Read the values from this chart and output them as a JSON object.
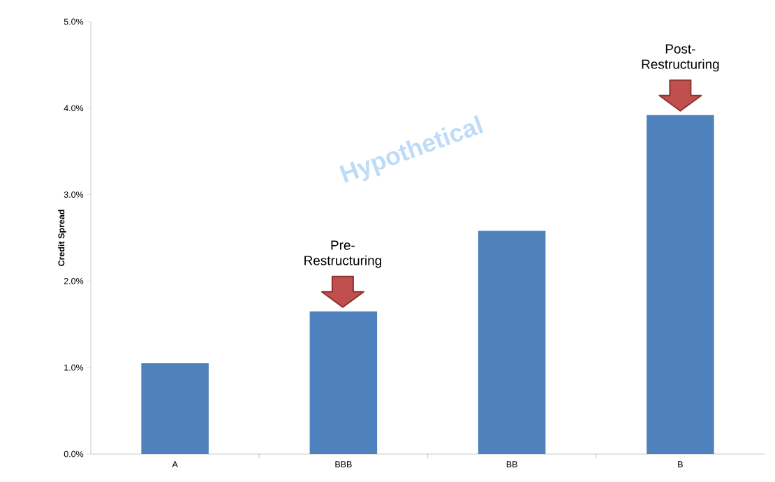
{
  "chart_data": {
    "type": "bar",
    "ylabel": "Credit Spread",
    "categories": [
      "A",
      "BBB",
      "BB",
      "B"
    ],
    "values": [
      1.05,
      1.65,
      2.58,
      3.92
    ],
    "color": "#4f81bd",
    "ylim": [
      0,
      5
    ],
    "yticks": [
      {
        "value": 0,
        "label": "0.0%"
      },
      {
        "value": 1,
        "label": "1.0%"
      },
      {
        "value": 2,
        "label": "2.0%"
      },
      {
        "value": 3,
        "label": "3.0%"
      },
      {
        "value": 4,
        "label": "4.0%"
      },
      {
        "value": 5,
        "label": "5.0%"
      }
    ],
    "grid": false,
    "annotations": [
      "Pre-Restructuring",
      "Post-Restructuring",
      "Hypothetical"
    ]
  }
}
